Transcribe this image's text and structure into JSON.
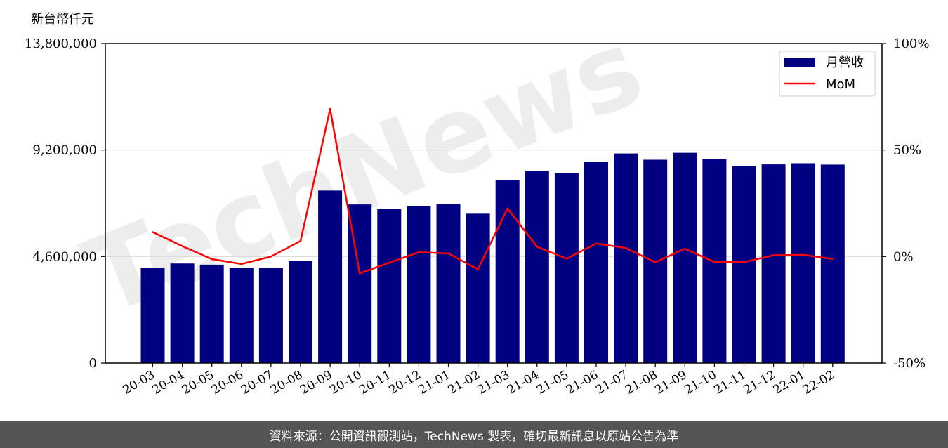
{
  "chart_data": {
    "type": "bar",
    "y_unit_label": "新台幣仟元",
    "categories": [
      "20-03",
      "20-04",
      "20-05",
      "20-06",
      "20-07",
      "20-08",
      "20-09",
      "20-10",
      "20-11",
      "20-12",
      "21-01",
      "21-02",
      "21-03",
      "21-04",
      "21-05",
      "21-06",
      "21-07",
      "21-08",
      "21-09",
      "21-10",
      "21-11",
      "21-12",
      "22-01",
      "22-02"
    ],
    "series": [
      {
        "name": "月營收",
        "type": "bar",
        "axis": "left",
        "color": "#000080",
        "values": [
          4100000,
          4300000,
          4250000,
          4100000,
          4100000,
          4400000,
          7450000,
          6850000,
          6650000,
          6780000,
          6870000,
          6450000,
          7900000,
          8300000,
          8200000,
          8700000,
          9050000,
          8780000,
          9080000,
          8800000,
          8520000,
          8580000,
          8630000,
          8570000
        ]
      },
      {
        "name": "MoM",
        "type": "line",
        "axis": "right",
        "color": "#ff0000",
        "values": [
          11.5,
          4.9,
          -1.2,
          -3.5,
          0,
          7.3,
          69.3,
          -7.9,
          -2.9,
          2.0,
          1.5,
          -6.0,
          22.6,
          4.6,
          -1.0,
          6.1,
          4.0,
          -2.7,
          3.7,
          -2.6,
          -2.6,
          0.6,
          0.8,
          -1.1
        ]
      }
    ],
    "y_left": {
      "ticks": [
        0,
        4600000,
        9200000,
        13800000
      ],
      "tick_labels": [
        "0",
        "4,600,000",
        "9,200,000",
        "13,800,000"
      ],
      "ylim": [
        0,
        13800000
      ]
    },
    "y_right": {
      "ticks": [
        -50,
        0,
        50,
        100
      ],
      "tick_labels": [
        "-50%",
        "0%",
        "50%",
        "100%"
      ],
      "ylim": [
        -50,
        100
      ]
    },
    "grid": "horizontal",
    "legend": {
      "placement": "top-right",
      "entries": [
        "月營收",
        "MoM"
      ]
    },
    "watermark": "TechNews"
  },
  "footer": {
    "text": "資料來源：公開資訊觀測站，TechNews 製表，確切最新訊息以原站公告為準"
  }
}
